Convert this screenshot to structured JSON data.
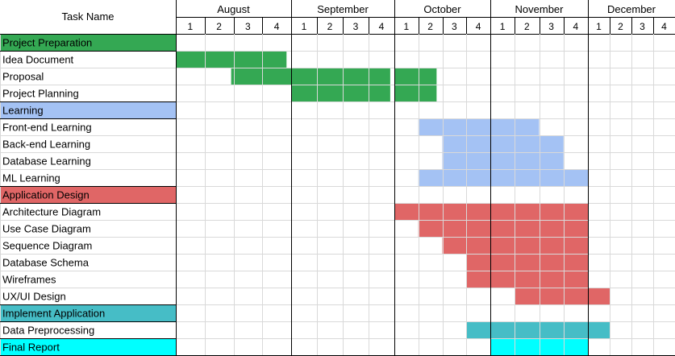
{
  "chart_data": {
    "type": "gantt",
    "header": {
      "task_column": "Task Name"
    },
    "months": [
      {
        "name": "August",
        "weeks": [
          "1",
          "2",
          "3",
          "4"
        ]
      },
      {
        "name": "September",
        "weeks": [
          "1",
          "2",
          "3",
          "4"
        ]
      },
      {
        "name": "October",
        "weeks": [
          "1",
          "2",
          "3",
          "4"
        ]
      },
      {
        "name": "November",
        "weeks": [
          "1",
          "2",
          "3",
          "4"
        ]
      },
      {
        "name": "December",
        "weeks": [
          "1",
          "2",
          "3",
          "4"
        ]
      }
    ],
    "colors": {
      "preparation": "#34a853",
      "learning": "#a4c2f4",
      "design": "#e06666",
      "implement": "#46bdc6",
      "report": "#00ffff",
      "grid": "#d9d9d9",
      "month_divider": "#000000"
    },
    "tasks": [
      {
        "name": "Project Preparation",
        "group": true,
        "color": "preparation",
        "label_fill": true,
        "segments": []
      },
      {
        "name": "Idea Document",
        "color": "preparation",
        "segments": [
          [
            0,
            0.96
          ]
        ]
      },
      {
        "name": "Proposal",
        "color": "preparation",
        "segments": [
          [
            0.48,
            1.96
          ],
          [
            2.0,
            2.44
          ]
        ]
      },
      {
        "name": "Project Planning",
        "color": "preparation",
        "segments": [
          [
            1.0,
            1.96
          ],
          [
            2.0,
            2.44
          ]
        ]
      },
      {
        "name": "Learning",
        "group": true,
        "color": "learning",
        "label_fill": true,
        "segments": []
      },
      {
        "name": "Front-end Learning",
        "color": "learning",
        "segments": [
          [
            2.25,
            3.5
          ]
        ]
      },
      {
        "name": "Back-end Learning",
        "color": "learning",
        "segments": [
          [
            2.5,
            3.75
          ]
        ]
      },
      {
        "name": "Database Learning",
        "color": "learning",
        "segments": [
          [
            2.5,
            3.75
          ]
        ]
      },
      {
        "name": "ML Learning",
        "color": "learning",
        "segments": [
          [
            2.25,
            4.0
          ]
        ]
      },
      {
        "name": "Application Design",
        "group": true,
        "color": "design",
        "label_fill": true,
        "segments": []
      },
      {
        "name": "Architecture Diagram",
        "color": "design",
        "segments": [
          [
            2.0,
            4.0
          ]
        ]
      },
      {
        "name": "Use Case Diagram",
        "color": "design",
        "segments": [
          [
            2.25,
            4.0
          ]
        ]
      },
      {
        "name": "Sequence Diagram",
        "color": "design",
        "segments": [
          [
            2.5,
            4.0
          ]
        ]
      },
      {
        "name": "Database Schema",
        "color": "design",
        "segments": [
          [
            2.75,
            4.0
          ]
        ]
      },
      {
        "name": "Wireframes",
        "color": "design",
        "segments": [
          [
            2.75,
            4.0
          ]
        ]
      },
      {
        "name": "UX/UI Design",
        "color": "design",
        "segments": [
          [
            3.25,
            4.25
          ]
        ]
      },
      {
        "name": "Implement Application",
        "group": true,
        "color": "implement",
        "label_fill": true,
        "segments": []
      },
      {
        "name": "Data Preprocessing",
        "color": "implement",
        "segments": [
          [
            2.75,
            4.25
          ]
        ]
      },
      {
        "name": "Final Report",
        "group": true,
        "color": "report",
        "label_fill": true,
        "segments": [
          [
            3.0,
            4.0
          ]
        ]
      }
    ]
  }
}
